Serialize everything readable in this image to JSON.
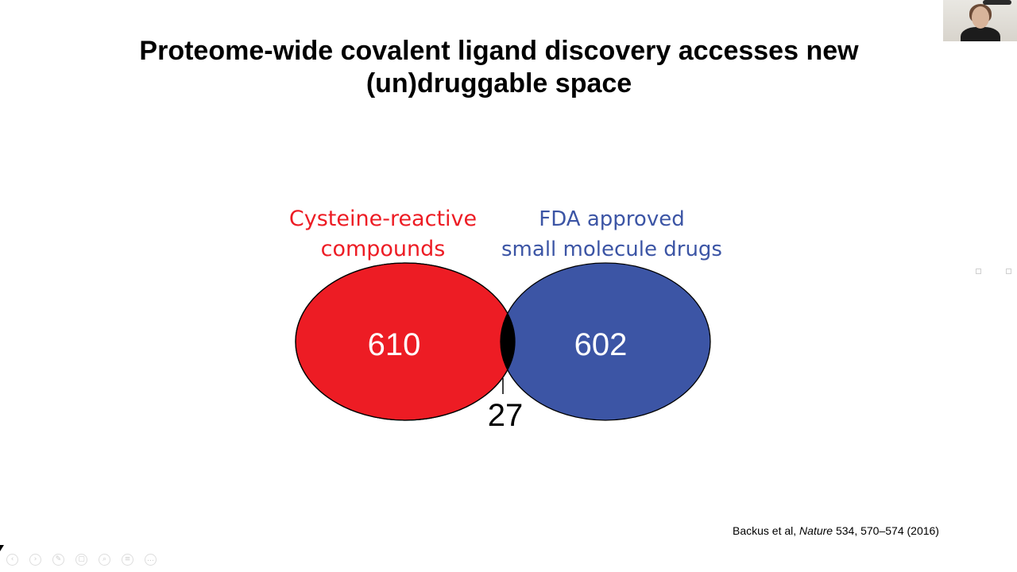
{
  "slide": {
    "title_lines": [
      "Proteome-wide covalent ligand discovery accesses new",
      "(un)druggable space"
    ]
  },
  "venn": {
    "left": {
      "label_lines": [
        "Cysteine-reactive",
        "compounds"
      ],
      "count": "610",
      "color": "#ed1c24"
    },
    "right": {
      "label_lines": [
        "FDA approved",
        "small molecule drugs"
      ],
      "count": "602",
      "color": "#3c55a5"
    },
    "overlap": {
      "count": "27",
      "color": "#000000"
    }
  },
  "citation": {
    "authors": "Backus et al, ",
    "journal": "Nature",
    "details": "  534, 570–574  (2016)"
  },
  "ui": {
    "webcam_icon": "webcam-thumbnail",
    "toolbar_icons": [
      "previous-icon",
      "next-icon",
      "pen-icon",
      "slides-icon",
      "zoom-icon",
      "subtitles-icon",
      "more-icon"
    ],
    "toolbar_glyphs": [
      "‹",
      "›",
      "✎",
      "▢",
      "⌕",
      "≡",
      "…"
    ]
  }
}
